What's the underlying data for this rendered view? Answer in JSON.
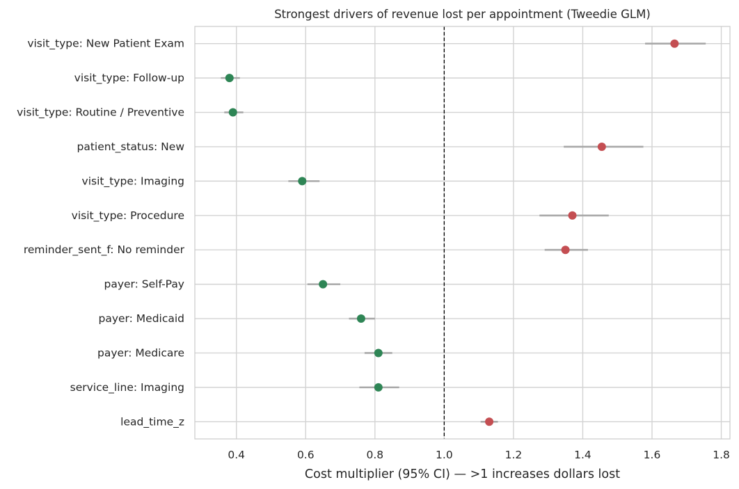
{
  "chart_data": {
    "type": "scatter",
    "subtype": "forest-plot",
    "title": "Strongest drivers of revenue lost per appointment (Tweedie GLM)",
    "xlabel": "Cost multiplier (95% CI)  —  >1 increases dollars lost",
    "ylabel": "",
    "xlim": [
      0.28,
      1.825
    ],
    "xticks": [
      0.4,
      0.6,
      0.8,
      1.0,
      1.2,
      1.4,
      1.6,
      1.8
    ],
    "xtick_labels": [
      "0.4",
      "0.6",
      "0.8",
      "1.0",
      "1.2",
      "1.4",
      "1.6",
      "1.8"
    ],
    "reference_line": 1.0,
    "grid": true,
    "colors": {
      "increase": "#c44e52",
      "decrease": "#2e8555",
      "ci": "#a8a8a8",
      "reference": "#000000"
    },
    "categories": [
      "visit_type: New Patient Exam",
      "visit_type: Follow-up",
      "visit_type: Routine / Preventive",
      "patient_status: New",
      "visit_type: Imaging",
      "visit_type: Procedure",
      "reminder_sent_f: No reminder",
      "payer: Self-Pay",
      "payer: Medicaid",
      "payer: Medicare",
      "service_line: Imaging",
      "lead_time_z"
    ],
    "estimates": [
      1.665,
      0.38,
      0.39,
      1.455,
      0.59,
      1.37,
      1.35,
      0.65,
      0.76,
      0.81,
      0.81,
      1.13
    ],
    "ci_low": [
      1.58,
      0.355,
      0.365,
      1.345,
      0.55,
      1.275,
      1.29,
      0.605,
      0.725,
      0.77,
      0.755,
      1.105
    ],
    "ci_high": [
      1.755,
      0.41,
      0.42,
      1.575,
      0.64,
      1.475,
      1.415,
      0.7,
      0.8,
      0.85,
      0.87,
      1.155
    ]
  }
}
